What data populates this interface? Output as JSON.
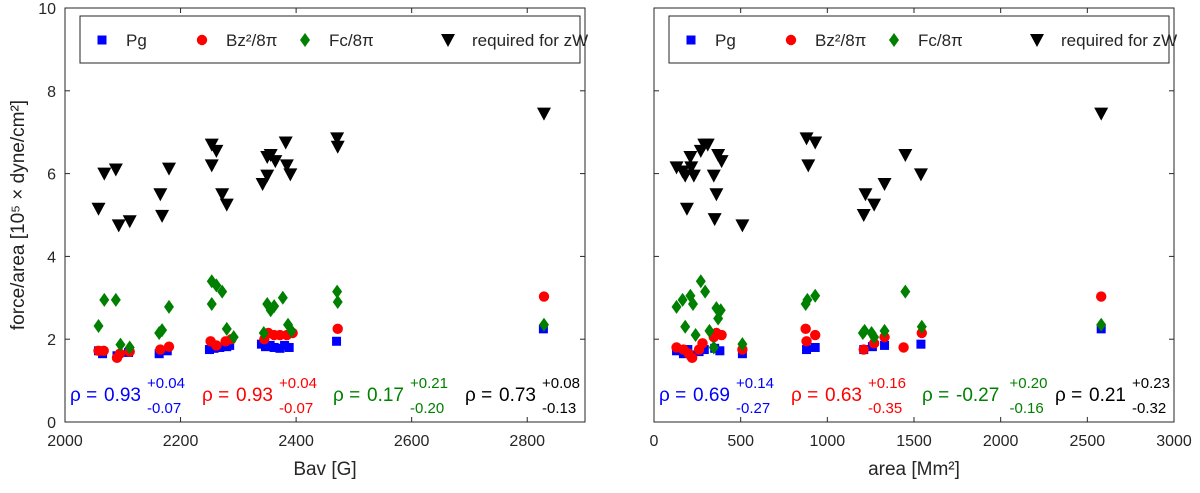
{
  "figure": {
    "ylabel": "force/area [10⁵ × dyne/cm²]"
  },
  "legend": [
    {
      "key": "pg",
      "label": "Pg",
      "color": "#0000ff",
      "marker": "square"
    },
    {
      "key": "bz",
      "label": "Bz²/8π",
      "color": "#ff0000",
      "marker": "circle"
    },
    {
      "key": "fc",
      "label": "Fc/8π",
      "color": "#008000",
      "marker": "diamond"
    },
    {
      "key": "req",
      "label": "required for zW",
      "color": "#000000",
      "marker": "triangle-down"
    }
  ],
  "chart_data": [
    {
      "type": "scatter",
      "title": "",
      "xlabel": "Bav [G]",
      "ylabel": "force/area [10⁵ × dyne/cm²]",
      "xlim": [
        2000,
        2900
      ],
      "ylim": [
        0,
        10
      ],
      "xticks": [
        2000,
        2200,
        2400,
        2600,
        2800
      ],
      "yticks": [
        0,
        2,
        4,
        6,
        8,
        10
      ],
      "series": [
        {
          "key": "pg",
          "name": "Pg",
          "points": [
            [
              2058,
              1.72
            ],
            [
              2065,
              1.65
            ],
            [
              2090,
              1.6
            ],
            [
              2110,
              1.68
            ],
            [
              2163,
              1.65
            ],
            [
              2177,
              1.72
            ],
            [
              2250,
              1.75
            ],
            [
              2258,
              1.78
            ],
            [
              2268,
              1.8
            ],
            [
              2280,
              1.82
            ],
            [
              2285,
              1.85
            ],
            [
              2340,
              1.88
            ],
            [
              2347,
              1.82
            ],
            [
              2355,
              1.85
            ],
            [
              2362,
              1.8
            ],
            [
              2372,
              1.78
            ],
            [
              2380,
              1.85
            ],
            [
              2388,
              1.8
            ],
            [
              2470,
              1.95
            ],
            [
              2828,
              2.25
            ]
          ]
        },
        {
          "key": "bz",
          "name": "Bz²/8π",
          "points": [
            [
              2058,
              1.72
            ],
            [
              2067,
              1.72
            ],
            [
              2090,
              1.55
            ],
            [
              2095,
              1.65
            ],
            [
              2112,
              1.7
            ],
            [
              2165,
              1.75
            ],
            [
              2180,
              1.82
            ],
            [
              2252,
              1.95
            ],
            [
              2262,
              1.85
            ],
            [
              2278,
              1.95
            ],
            [
              2288,
              2.0
            ],
            [
              2345,
              2.0
            ],
            [
              2352,
              2.15
            ],
            [
              2362,
              2.1
            ],
            [
              2372,
              2.1
            ],
            [
              2384,
              2.1
            ],
            [
              2394,
              2.15
            ],
            [
              2472,
              2.25
            ],
            [
              2829,
              3.03
            ]
          ]
        },
        {
          "key": "fc",
          "name": "Fc/8π",
          "points": [
            [
              2058,
              2.32
            ],
            [
              2068,
              2.95
            ],
            [
              2088,
              2.95
            ],
            [
              2096,
              1.87
            ],
            [
              2112,
              1.8
            ],
            [
              2163,
              2.15
            ],
            [
              2168,
              2.22
            ],
            [
              2180,
              2.78
            ],
            [
              2254,
              3.4
            ],
            [
              2254,
              2.85
            ],
            [
              2262,
              3.3
            ],
            [
              2272,
              3.15
            ],
            [
              2280,
              2.25
            ],
            [
              2292,
              2.05
            ],
            [
              2344,
              2.15
            ],
            [
              2350,
              2.85
            ],
            [
              2356,
              2.7
            ],
            [
              2362,
              2.8
            ],
            [
              2377,
              3.0
            ],
            [
              2386,
              2.35
            ],
            [
              2392,
              2.2
            ],
            [
              2471,
              3.15
            ],
            [
              2472,
              2.9
            ],
            [
              2829,
              2.35
            ]
          ]
        },
        {
          "key": "req",
          "name": "required for zW",
          "points": [
            [
              2058,
              5.15
            ],
            [
              2068,
              6.0
            ],
            [
              2088,
              6.1
            ],
            [
              2093,
              4.75
            ],
            [
              2112,
              4.85
            ],
            [
              2165,
              5.5
            ],
            [
              2168,
              4.98
            ],
            [
              2180,
              6.12
            ],
            [
              2254,
              6.7
            ],
            [
              2254,
              6.2
            ],
            [
              2262,
              6.55
            ],
            [
              2272,
              5.5
            ],
            [
              2280,
              5.25
            ],
            [
              2342,
              5.75
            ],
            [
              2350,
              5.95
            ],
            [
              2350,
              6.4
            ],
            [
              2356,
              6.45
            ],
            [
              2364,
              6.3
            ],
            [
              2382,
              6.75
            ],
            [
              2384,
              6.2
            ],
            [
              2390,
              5.98
            ],
            [
              2471,
              6.85
            ],
            [
              2472,
              6.65
            ],
            [
              2829,
              7.45
            ]
          ]
        }
      ],
      "annotations": [
        {
          "key": "pg",
          "rho": "0.93",
          "up": "+0.04",
          "dn": "-0.07",
          "color": "#0000ff"
        },
        {
          "key": "bz",
          "rho": "0.93",
          "up": "+0.04",
          "dn": "-0.07",
          "color": "#ff0000"
        },
        {
          "key": "fc",
          "rho": "0.17",
          "up": "+0.21",
          "dn": "-0.20",
          "color": "#008000"
        },
        {
          "key": "req",
          "rho": "0.73",
          "up": "+0.08",
          "dn": "-0.13",
          "color": "#000000"
        }
      ]
    },
    {
      "type": "scatter",
      "title": "",
      "xlabel": "area [Mm²]",
      "ylabel": "",
      "xlim": [
        0,
        3000
      ],
      "ylim": [
        0,
        10
      ],
      "xticks": [
        0,
        500,
        1000,
        1500,
        2000,
        2500,
        3000
      ],
      "yticks": [
        0,
        2,
        4,
        6,
        8,
        10
      ],
      "series": [
        {
          "key": "pg",
          "name": "Pg",
          "points": [
            [
              130,
              1.72
            ],
            [
              170,
              1.65
            ],
            [
              195,
              1.75
            ],
            [
              215,
              1.62
            ],
            [
              260,
              1.7
            ],
            [
              290,
              1.75
            ],
            [
              350,
              1.78
            ],
            [
              380,
              1.72
            ],
            [
              510,
              1.65
            ],
            [
              880,
              1.75
            ],
            [
              930,
              1.8
            ],
            [
              1210,
              1.75
            ],
            [
              1260,
              1.82
            ],
            [
              1330,
              1.85
            ],
            [
              1540,
              1.88
            ],
            [
              2580,
              2.25
            ]
          ]
        },
        {
          "key": "bz",
          "name": "Bz²/8π",
          "points": [
            [
              130,
              1.8
            ],
            [
              170,
              1.75
            ],
            [
              200,
              1.65
            ],
            [
              220,
              1.55
            ],
            [
              260,
              1.75
            ],
            [
              280,
              1.9
            ],
            [
              345,
              2.05
            ],
            [
              360,
              2.15
            ],
            [
              390,
              2.1
            ],
            [
              510,
              1.75
            ],
            [
              875,
              2.25
            ],
            [
              880,
              1.95
            ],
            [
              930,
              2.1
            ],
            [
              1210,
              1.75
            ],
            [
              1270,
              1.9
            ],
            [
              1330,
              2.05
            ],
            [
              1440,
              1.8
            ],
            [
              1545,
              2.15
            ],
            [
              2580,
              3.03
            ]
          ]
        },
        {
          "key": "fc",
          "name": "Fc/8π",
          "points": [
            [
              130,
              2.78
            ],
            [
              165,
              2.95
            ],
            [
              180,
              2.3
            ],
            [
              210,
              3.05
            ],
            [
              225,
              2.85
            ],
            [
              240,
              2.1
            ],
            [
              270,
              3.4
            ],
            [
              295,
              3.15
            ],
            [
              320,
              2.2
            ],
            [
              345,
              1.8
            ],
            [
              360,
              2.75
            ],
            [
              370,
              2.5
            ],
            [
              385,
              2.7
            ],
            [
              510,
              1.88
            ],
            [
              875,
              2.85
            ],
            [
              885,
              2.95
            ],
            [
              930,
              3.05
            ],
            [
              1205,
              2.15
            ],
            [
              1215,
              2.2
            ],
            [
              1255,
              2.15
            ],
            [
              1270,
              2.05
            ],
            [
              1330,
              2.2
            ],
            [
              1450,
              3.15
            ],
            [
              1545,
              2.3
            ],
            [
              2580,
              2.35
            ]
          ]
        },
        {
          "key": "req",
          "name": "required for zW",
          "points": [
            [
              130,
              6.15
            ],
            [
              165,
              6.05
            ],
            [
              180,
              5.95
            ],
            [
              190,
              5.15
            ],
            [
              210,
              6.4
            ],
            [
              215,
              6.15
            ],
            [
              230,
              5.95
            ],
            [
              270,
              6.55
            ],
            [
              290,
              6.7
            ],
            [
              310,
              6.7
            ],
            [
              345,
              5.95
            ],
            [
              360,
              5.5
            ],
            [
              350,
              4.9
            ],
            [
              370,
              6.45
            ],
            [
              390,
              6.3
            ],
            [
              510,
              4.75
            ],
            [
              880,
              6.85
            ],
            [
              890,
              6.2
            ],
            [
              930,
              6.75
            ],
            [
              1210,
              5.0
            ],
            [
              1220,
              5.5
            ],
            [
              1270,
              5.25
            ],
            [
              1330,
              5.75
            ],
            [
              1450,
              6.45
            ],
            [
              1540,
              5.98
            ],
            [
              2580,
              7.45
            ]
          ]
        }
      ],
      "annotations": [
        {
          "key": "pg",
          "rho": "0.69",
          "up": "+0.14",
          "dn": "-0.27",
          "color": "#0000ff"
        },
        {
          "key": "bz",
          "rho": "0.63",
          "up": "+0.16",
          "dn": "-0.35",
          "color": "#ff0000"
        },
        {
          "key": "fc",
          "rho": "-0.27",
          "up": "+0.20",
          "dn": "-0.16",
          "color": "#008000"
        },
        {
          "key": "req",
          "rho": "0.21",
          "up": "+0.23",
          "dn": "-0.32",
          "color": "#000000"
        }
      ]
    }
  ]
}
